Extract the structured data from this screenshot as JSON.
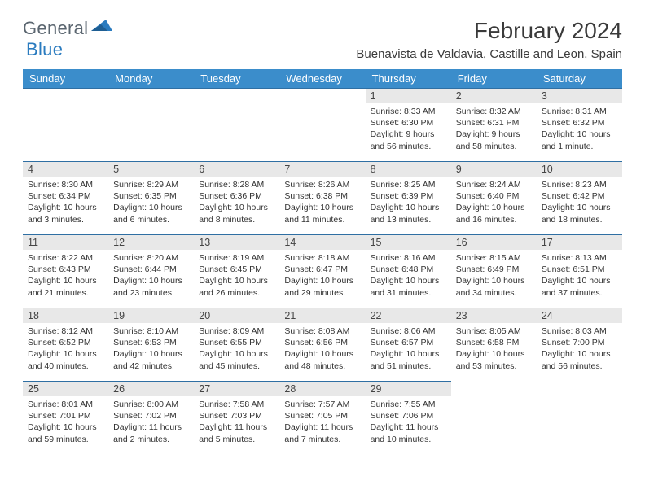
{
  "logo": {
    "text1": "General",
    "text2": "Blue"
  },
  "title": "February 2024",
  "location": "Buenavista de Valdavia, Castille and Leon, Spain",
  "colors": {
    "header_bg": "#3b8dcb",
    "header_text": "#ffffff",
    "row_border": "#2f6fa3",
    "daynum_bg": "#e8e8e8",
    "logo_gray": "#5b6670",
    "logo_blue": "#2a7bbf"
  },
  "weekdays": [
    "Sunday",
    "Monday",
    "Tuesday",
    "Wednesday",
    "Thursday",
    "Friday",
    "Saturday"
  ],
  "weeks": [
    [
      null,
      null,
      null,
      null,
      {
        "n": "1",
        "sr": "8:33 AM",
        "ss": "6:30 PM",
        "dl": "9 hours and 56 minutes."
      },
      {
        "n": "2",
        "sr": "8:32 AM",
        "ss": "6:31 PM",
        "dl": "9 hours and 58 minutes."
      },
      {
        "n": "3",
        "sr": "8:31 AM",
        "ss": "6:32 PM",
        "dl": "10 hours and 1 minute."
      }
    ],
    [
      {
        "n": "4",
        "sr": "8:30 AM",
        "ss": "6:34 PM",
        "dl": "10 hours and 3 minutes."
      },
      {
        "n": "5",
        "sr": "8:29 AM",
        "ss": "6:35 PM",
        "dl": "10 hours and 6 minutes."
      },
      {
        "n": "6",
        "sr": "8:28 AM",
        "ss": "6:36 PM",
        "dl": "10 hours and 8 minutes."
      },
      {
        "n": "7",
        "sr": "8:26 AM",
        "ss": "6:38 PM",
        "dl": "10 hours and 11 minutes."
      },
      {
        "n": "8",
        "sr": "8:25 AM",
        "ss": "6:39 PM",
        "dl": "10 hours and 13 minutes."
      },
      {
        "n": "9",
        "sr": "8:24 AM",
        "ss": "6:40 PM",
        "dl": "10 hours and 16 minutes."
      },
      {
        "n": "10",
        "sr": "8:23 AM",
        "ss": "6:42 PM",
        "dl": "10 hours and 18 minutes."
      }
    ],
    [
      {
        "n": "11",
        "sr": "8:22 AM",
        "ss": "6:43 PM",
        "dl": "10 hours and 21 minutes."
      },
      {
        "n": "12",
        "sr": "8:20 AM",
        "ss": "6:44 PM",
        "dl": "10 hours and 23 minutes."
      },
      {
        "n": "13",
        "sr": "8:19 AM",
        "ss": "6:45 PM",
        "dl": "10 hours and 26 minutes."
      },
      {
        "n": "14",
        "sr": "8:18 AM",
        "ss": "6:47 PM",
        "dl": "10 hours and 29 minutes."
      },
      {
        "n": "15",
        "sr": "8:16 AM",
        "ss": "6:48 PM",
        "dl": "10 hours and 31 minutes."
      },
      {
        "n": "16",
        "sr": "8:15 AM",
        "ss": "6:49 PM",
        "dl": "10 hours and 34 minutes."
      },
      {
        "n": "17",
        "sr": "8:13 AM",
        "ss": "6:51 PM",
        "dl": "10 hours and 37 minutes."
      }
    ],
    [
      {
        "n": "18",
        "sr": "8:12 AM",
        "ss": "6:52 PM",
        "dl": "10 hours and 40 minutes."
      },
      {
        "n": "19",
        "sr": "8:10 AM",
        "ss": "6:53 PM",
        "dl": "10 hours and 42 minutes."
      },
      {
        "n": "20",
        "sr": "8:09 AM",
        "ss": "6:55 PM",
        "dl": "10 hours and 45 minutes."
      },
      {
        "n": "21",
        "sr": "8:08 AM",
        "ss": "6:56 PM",
        "dl": "10 hours and 48 minutes."
      },
      {
        "n": "22",
        "sr": "8:06 AM",
        "ss": "6:57 PM",
        "dl": "10 hours and 51 minutes."
      },
      {
        "n": "23",
        "sr": "8:05 AM",
        "ss": "6:58 PM",
        "dl": "10 hours and 53 minutes."
      },
      {
        "n": "24",
        "sr": "8:03 AM",
        "ss": "7:00 PM",
        "dl": "10 hours and 56 minutes."
      }
    ],
    [
      {
        "n": "25",
        "sr": "8:01 AM",
        "ss": "7:01 PM",
        "dl": "10 hours and 59 minutes."
      },
      {
        "n": "26",
        "sr": "8:00 AM",
        "ss": "7:02 PM",
        "dl": "11 hours and 2 minutes."
      },
      {
        "n": "27",
        "sr": "7:58 AM",
        "ss": "7:03 PM",
        "dl": "11 hours and 5 minutes."
      },
      {
        "n": "28",
        "sr": "7:57 AM",
        "ss": "7:05 PM",
        "dl": "11 hours and 7 minutes."
      },
      {
        "n": "29",
        "sr": "7:55 AM",
        "ss": "7:06 PM",
        "dl": "11 hours and 10 minutes."
      },
      null,
      null
    ]
  ],
  "labels": {
    "sunrise": "Sunrise: ",
    "sunset": "Sunset: ",
    "daylight": "Daylight: "
  }
}
